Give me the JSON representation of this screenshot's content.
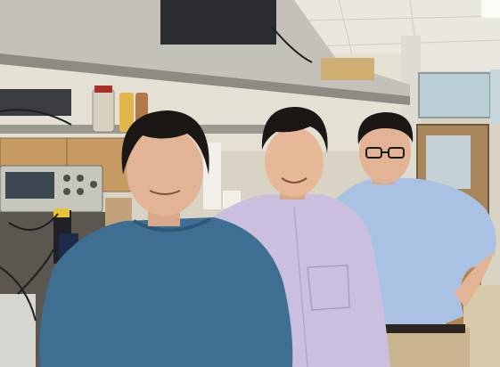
{
  "scene": {
    "colors": {
      "ceiling": "#e9e7e0",
      "wall": "#d8d3c4",
      "shelf": "#b9b6ad",
      "window": "#b8cdd6",
      "cabinet": "#c89a63",
      "bench": "#5b5650",
      "skin": "#e2b394",
      "hair": "#1b1715",
      "teal_shirt": "#3e6e92",
      "lavender_shirt": "#cbbfdf",
      "blue_shirt": "#a9c1e3",
      "khaki": "#c9b48f"
    },
    "objects": [
      "ceiling-grid",
      "metal-shelf",
      "oscilloscope",
      "lab-bottles",
      "lab-cables",
      "wooden-cabinets",
      "window",
      "door"
    ],
    "people": [
      {
        "role": "left-person",
        "shirt": "teal_shirt"
      },
      {
        "role": "center-person",
        "shirt": "lavender_shirt"
      },
      {
        "role": "right-person",
        "shirt": "blue_shirt",
        "glasses": true
      }
    ]
  }
}
